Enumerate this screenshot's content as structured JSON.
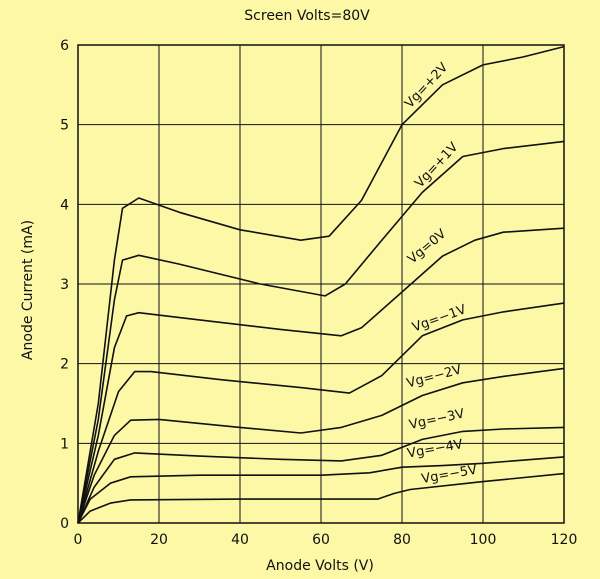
{
  "chart_data": {
    "type": "line",
    "title": "Screen Volts=80V",
    "xlabel": "Anode Volts (V)",
    "ylabel": "Anode Current (mA)",
    "xlim": [
      0,
      120
    ],
    "ylim": [
      0,
      6
    ],
    "xticks": [
      0,
      20,
      40,
      60,
      80,
      100,
      120
    ],
    "yticks": [
      0,
      1,
      2,
      3,
      4,
      5,
      6
    ],
    "grid": true,
    "background": "#fcf8a6",
    "line_color": "#111111",
    "series": [
      {
        "name": "Vg=+2V",
        "points": [
          [
            0,
            0
          ],
          [
            5,
            1.5
          ],
          [
            9,
            3.3
          ],
          [
            11,
            3.95
          ],
          [
            15,
            4.08
          ],
          [
            25,
            3.9
          ],
          [
            40,
            3.68
          ],
          [
            55,
            3.55
          ],
          [
            62,
            3.6
          ],
          [
            70,
            4.05
          ],
          [
            80,
            5.0
          ],
          [
            90,
            5.5
          ],
          [
            100,
            5.75
          ],
          [
            110,
            5.85
          ],
          [
            120,
            5.98
          ]
        ]
      },
      {
        "name": "Vg=+1V",
        "points": [
          [
            0,
            0
          ],
          [
            5,
            1.3
          ],
          [
            9,
            2.8
          ],
          [
            11,
            3.3
          ],
          [
            15,
            3.36
          ],
          [
            25,
            3.25
          ],
          [
            45,
            3.0
          ],
          [
            61,
            2.85
          ],
          [
            66,
            3.0
          ],
          [
            75,
            3.55
          ],
          [
            85,
            4.15
          ],
          [
            95,
            4.6
          ],
          [
            105,
            4.7
          ],
          [
            120,
            4.79
          ]
        ]
      },
      {
        "name": "Vg=0V",
        "points": [
          [
            0,
            0
          ],
          [
            5,
            1.1
          ],
          [
            9,
            2.2
          ],
          [
            12,
            2.6
          ],
          [
            15,
            2.64
          ],
          [
            30,
            2.55
          ],
          [
            50,
            2.43
          ],
          [
            65,
            2.35
          ],
          [
            70,
            2.45
          ],
          [
            80,
            2.9
          ],
          [
            90,
            3.35
          ],
          [
            98,
            3.55
          ],
          [
            105,
            3.65
          ],
          [
            120,
            3.7
          ]
        ]
      },
      {
        "name": "Vg=−1V",
        "points": [
          [
            0,
            0
          ],
          [
            5,
            0.9
          ],
          [
            10,
            1.65
          ],
          [
            14,
            1.9
          ],
          [
            18,
            1.9
          ],
          [
            35,
            1.8
          ],
          [
            55,
            1.7
          ],
          [
            67,
            1.63
          ],
          [
            75,
            1.85
          ],
          [
            85,
            2.35
          ],
          [
            95,
            2.55
          ],
          [
            105,
            2.65
          ],
          [
            120,
            2.76
          ]
        ]
      },
      {
        "name": "Vg=−2V",
        "points": [
          [
            0,
            0
          ],
          [
            4,
            0.6
          ],
          [
            9,
            1.1
          ],
          [
            13,
            1.29
          ],
          [
            20,
            1.3
          ],
          [
            40,
            1.2
          ],
          [
            55,
            1.13
          ],
          [
            65,
            1.2
          ],
          [
            75,
            1.35
          ],
          [
            85,
            1.6
          ],
          [
            95,
            1.76
          ],
          [
            105,
            1.84
          ],
          [
            120,
            1.94
          ]
        ]
      },
      {
        "name": "Vg=−3V",
        "points": [
          [
            0,
            0
          ],
          [
            4,
            0.45
          ],
          [
            9,
            0.8
          ],
          [
            14,
            0.88
          ],
          [
            30,
            0.84
          ],
          [
            50,
            0.8
          ],
          [
            65,
            0.78
          ],
          [
            75,
            0.85
          ],
          [
            85,
            1.05
          ],
          [
            95,
            1.15
          ],
          [
            105,
            1.18
          ],
          [
            120,
            1.2
          ]
        ]
      },
      {
        "name": "Vg=−4V",
        "points": [
          [
            0,
            0
          ],
          [
            3,
            0.3
          ],
          [
            8,
            0.5
          ],
          [
            13,
            0.58
          ],
          [
            30,
            0.6
          ],
          [
            60,
            0.6
          ],
          [
            72,
            0.63
          ],
          [
            80,
            0.7
          ],
          [
            90,
            0.72
          ],
          [
            100,
            0.75
          ],
          [
            120,
            0.83
          ]
        ]
      },
      {
        "name": "Vg=−5V",
        "points": [
          [
            0,
            0
          ],
          [
            3,
            0.15
          ],
          [
            8,
            0.25
          ],
          [
            13,
            0.29
          ],
          [
            40,
            0.3
          ],
          [
            74,
            0.3
          ],
          [
            78,
            0.37
          ],
          [
            82,
            0.42
          ],
          [
            100,
            0.52
          ],
          [
            120,
            0.62
          ]
        ]
      }
    ],
    "curve_labels": [
      {
        "text": "Vg=+2V",
        "x": 82,
        "y": 5.2,
        "angle": -47
      },
      {
        "text": "Vg=+1V",
        "x": 84.5,
        "y": 4.2,
        "angle": -47
      },
      {
        "text": "Vg=0V",
        "x": 82.5,
        "y": 3.25,
        "angle": -40
      },
      {
        "text": "Vg=−1V",
        "x": 83,
        "y": 2.4,
        "angle": -20
      },
      {
        "text": "Vg=−2V",
        "x": 81.5,
        "y": 1.7,
        "angle": -15
      },
      {
        "text": "Vg=−3V",
        "x": 82,
        "y": 1.18,
        "angle": -12
      },
      {
        "text": "Vg=−4V",
        "x": 81.5,
        "y": 0.82,
        "angle": -10
      },
      {
        "text": "Vg=−5V",
        "x": 85,
        "y": 0.5,
        "angle": -10
      }
    ]
  }
}
